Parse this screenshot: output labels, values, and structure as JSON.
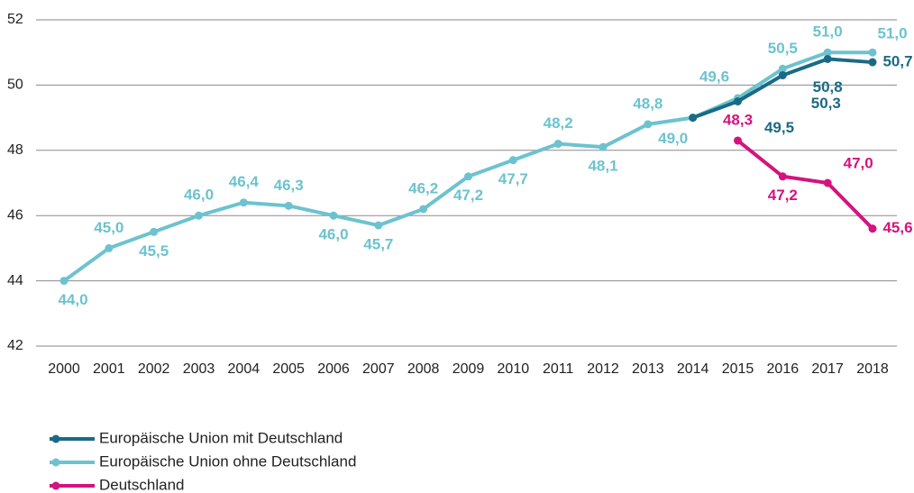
{
  "chart_data": {
    "type": "line",
    "x": [
      2000,
      2001,
      2002,
      2003,
      2004,
      2005,
      2006,
      2007,
      2008,
      2009,
      2010,
      2011,
      2012,
      2013,
      2014,
      2015,
      2016,
      2017,
      2018
    ],
    "xticks": [
      2000,
      2001,
      2002,
      2003,
      2004,
      2005,
      2006,
      2007,
      2008,
      2009,
      2010,
      2011,
      2012,
      2013,
      2014,
      2015,
      2016,
      2017,
      2018
    ],
    "xlim": [
      2000,
      2018
    ],
    "ylim": [
      42,
      52
    ],
    "yticks": [
      42,
      44,
      46,
      48,
      50,
      52
    ],
    "grid": true,
    "legend": "bottom-left",
    "series": [
      {
        "name": "Europäische Union mit Deutschland",
        "color": "#1b6a85",
        "values": [
          null,
          null,
          null,
          null,
          null,
          null,
          null,
          null,
          null,
          null,
          null,
          null,
          null,
          null,
          49.0,
          49.5,
          50.3,
          50.8,
          50.7
        ],
        "value_labels": [
          null,
          null,
          null,
          null,
          null,
          null,
          null,
          null,
          null,
          null,
          null,
          null,
          null,
          null,
          null,
          "49,5",
          "50,3",
          "50,8",
          "50,7"
        ]
      },
      {
        "name": "Europäische Union ohne Deutschland",
        "color": "#6cc3cf",
        "values": [
          44.0,
          45.0,
          45.5,
          46.0,
          46.4,
          46.3,
          46.0,
          45.7,
          46.2,
          47.2,
          47.7,
          48.2,
          48.1,
          48.8,
          49.0,
          49.6,
          50.5,
          51.0,
          51.0
        ],
        "value_labels": [
          "44,0",
          "45,0",
          "45,5",
          "46,0",
          "46,4",
          "46,3",
          "46,0",
          "45,7",
          "46,2",
          "47,2",
          "47,7",
          "48,2",
          "48,1",
          "48,8",
          "49,0",
          "49,6",
          "50,5",
          "51,0",
          "51,0"
        ]
      },
      {
        "name": "Deutschland",
        "color": "#d4137f",
        "values": [
          null,
          null,
          null,
          null,
          null,
          null,
          null,
          null,
          null,
          null,
          null,
          null,
          null,
          null,
          null,
          48.3,
          47.2,
          47.0,
          45.6
        ],
        "value_labels": [
          null,
          null,
          null,
          null,
          null,
          null,
          null,
          null,
          null,
          null,
          null,
          null,
          null,
          null,
          null,
          "48,3",
          "47,2",
          "47,0",
          "45,6"
        ]
      }
    ]
  }
}
